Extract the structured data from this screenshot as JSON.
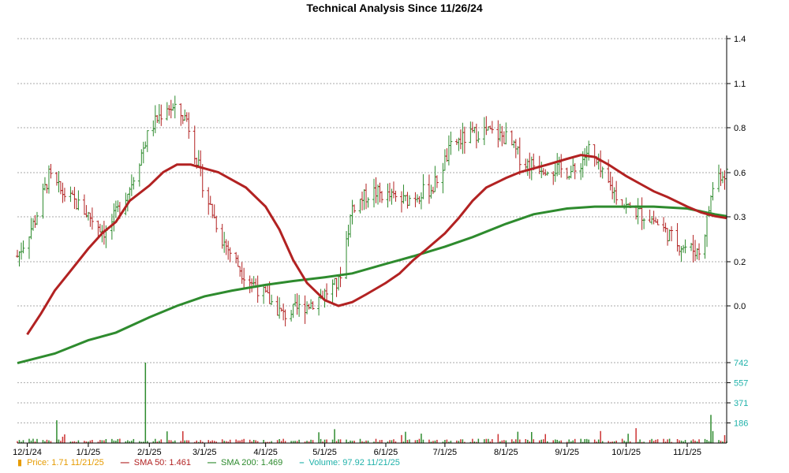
{
  "chart_data": {
    "type": "candlestick",
    "title": "Technical Analysis Since 11/26/24",
    "price_axis": {
      "ticks": [
        "1.4",
        "1.1",
        "0.8",
        "0.6",
        "0.3",
        "0.2",
        "0.0"
      ]
    },
    "volume_axis": {
      "ticks": [
        "742",
        "557",
        "371",
        "186"
      ],
      "ylim": [
        0,
        742
      ]
    },
    "x_ticks": [
      "12/1/24",
      "1/1/25",
      "2/1/25",
      "3/1/25",
      "4/1/25",
      "5/1/25",
      "6/1/25",
      "7/1/25",
      "8/1/25",
      "9/1/25",
      "10/1/25",
      "11/1/25"
    ],
    "grid": true,
    "colors": {
      "up": "#2e8b2e",
      "down": "#b22222",
      "sma50": "#b22222",
      "sma200": "#2e8b2e",
      "volume_up": "#2e8b2e",
      "volume_down": "#cc3333",
      "grid": "#aaaaaa",
      "price_label": "#e69b00",
      "volume_label": "#20b2aa"
    },
    "sma50_points": [
      [
        "12/1/24",
        -0.15
      ],
      [
        "12/8/24",
        -0.04
      ],
      [
        "12/15/24",
        0.08
      ],
      [
        "12/22/24",
        0.17
      ],
      [
        "1/1/25",
        0.3
      ],
      [
        "1/8/25",
        0.38
      ],
      [
        "1/15/25",
        0.44
      ],
      [
        "1/22/25",
        0.55
      ],
      [
        "2/1/25",
        0.63
      ],
      [
        "2/8/25",
        0.7
      ],
      [
        "2/15/25",
        0.74
      ],
      [
        "2/22/25",
        0.74
      ],
      [
        "3/1/25",
        0.72
      ],
      [
        "3/8/25",
        0.7
      ],
      [
        "3/15/25",
        0.66
      ],
      [
        "3/22/25",
        0.62
      ],
      [
        "4/1/25",
        0.52
      ],
      [
        "4/8/25",
        0.4
      ],
      [
        "4/15/25",
        0.24
      ],
      [
        "4/22/25",
        0.12
      ],
      [
        "5/1/25",
        0.03
      ],
      [
        "5/8/25",
        0.0
      ],
      [
        "5/15/25",
        0.02
      ],
      [
        "5/22/25",
        0.06
      ],
      [
        "6/1/25",
        0.12
      ],
      [
        "6/8/25",
        0.17
      ],
      [
        "6/15/25",
        0.24
      ],
      [
        "6/22/25",
        0.3
      ],
      [
        "7/1/25",
        0.38
      ],
      [
        "7/8/25",
        0.46
      ],
      [
        "7/15/25",
        0.55
      ],
      [
        "7/22/25",
        0.62
      ],
      [
        "8/1/25",
        0.67
      ],
      [
        "8/8/25",
        0.7
      ],
      [
        "8/15/25",
        0.72
      ],
      [
        "8/22/25",
        0.74
      ],
      [
        "9/1/25",
        0.77
      ],
      [
        "9/8/25",
        0.79
      ],
      [
        "9/15/25",
        0.78
      ],
      [
        "9/22/25",
        0.74
      ],
      [
        "10/1/25",
        0.68
      ],
      [
        "10/8/25",
        0.64
      ],
      [
        "10/15/25",
        0.6
      ],
      [
        "10/22/25",
        0.57
      ],
      [
        "11/1/25",
        0.52
      ],
      [
        "11/8/25",
        0.49
      ],
      [
        "11/15/25",
        0.47
      ],
      [
        "11/21/25",
        0.46
      ]
    ],
    "sma200_points": [
      [
        "11/26/24",
        -0.3
      ],
      [
        "12/15/24",
        -0.25
      ],
      [
        "1/1/25",
        -0.18
      ],
      [
        "1/15/25",
        -0.14
      ],
      [
        "2/1/25",
        -0.06
      ],
      [
        "2/15/25",
        0.0
      ],
      [
        "3/1/25",
        0.05
      ],
      [
        "3/15/25",
        0.08
      ],
      [
        "4/1/25",
        0.11
      ],
      [
        "4/15/25",
        0.13
      ],
      [
        "5/1/25",
        0.15
      ],
      [
        "5/15/25",
        0.17
      ],
      [
        "6/1/25",
        0.22
      ],
      [
        "6/15/25",
        0.26
      ],
      [
        "7/1/25",
        0.31
      ],
      [
        "7/15/25",
        0.36
      ],
      [
        "8/1/25",
        0.43
      ],
      [
        "8/15/25",
        0.48
      ],
      [
        "9/1/25",
        0.51
      ],
      [
        "9/15/25",
        0.52
      ],
      [
        "10/1/25",
        0.52
      ],
      [
        "10/15/25",
        0.52
      ],
      [
        "11/1/25",
        0.51
      ],
      [
        "11/15/25",
        0.48
      ],
      [
        "11/21/25",
        0.47
      ]
    ],
    "legend": [
      {
        "symbol": "▮",
        "label": "Price: 1.71  11/21/25",
        "color": "#e69b00"
      },
      {
        "symbol": "—",
        "label": "SMA 50: 1.461",
        "color": "#b22222"
      },
      {
        "symbol": "—",
        "label": "SMA 200: 1.469",
        "color": "#2e8b2e"
      },
      {
        "symbol": "–",
        "label": "Volume: 97.92  11/21/25",
        "color": "#20b2aa"
      }
    ]
  }
}
